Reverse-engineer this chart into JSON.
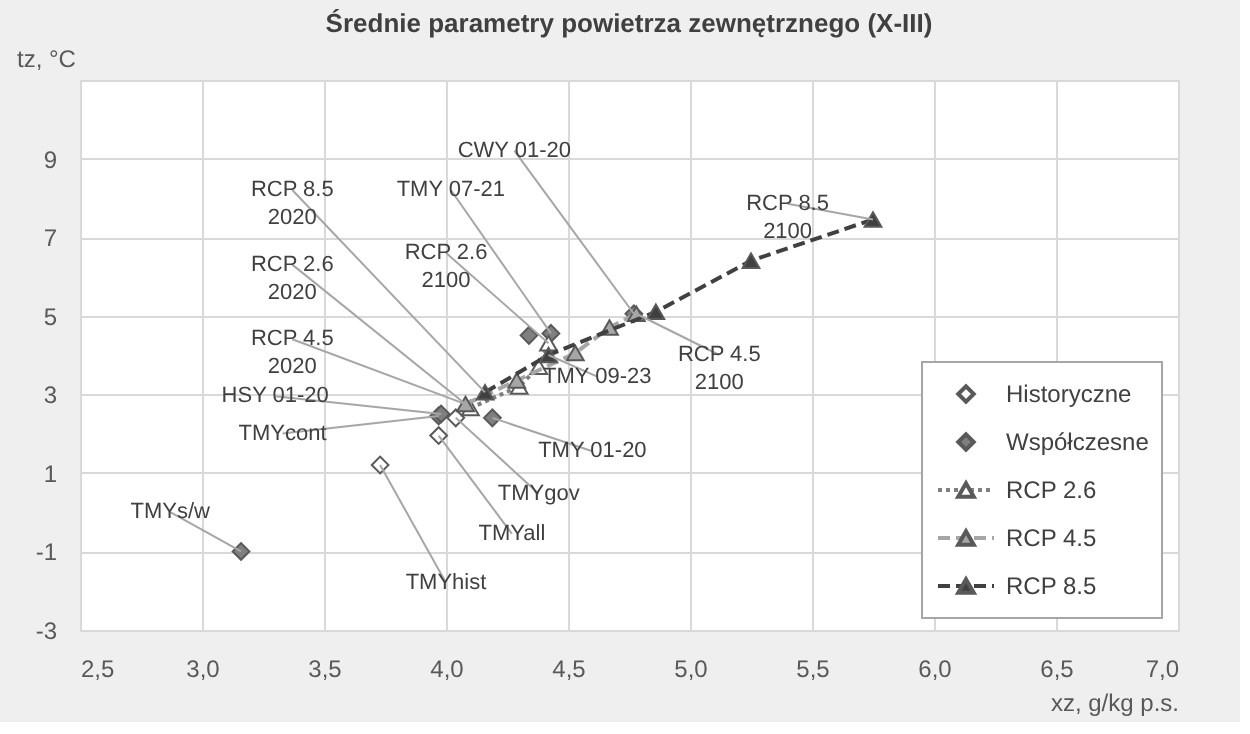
{
  "chart_data": {
    "type": "scatter",
    "title": "Średnie parametry powietrza zewnętrznego (X-III)",
    "xlabel": "xz, g/kg p.s.",
    "ylabel": "tz, °C",
    "xlim": [
      2.5,
      7.0
    ],
    "ylim": [
      -3,
      11
    ],
    "xticks": [
      {
        "value": 2.5,
        "label": "2,5"
      },
      {
        "value": 3.0,
        "label": "3,0"
      },
      {
        "value": 3.5,
        "label": "3,5"
      },
      {
        "value": 4.0,
        "label": "4,0"
      },
      {
        "value": 4.5,
        "label": "4,5"
      },
      {
        "value": 5.0,
        "label": "5,0"
      },
      {
        "value": 5.5,
        "label": "5,5"
      },
      {
        "value": 6.0,
        "label": "6,0"
      },
      {
        "value": 6.5,
        "label": "6,5"
      },
      {
        "value": 7.0,
        "label": "7,0"
      }
    ],
    "yticks": [
      -3,
      -1,
      1,
      3,
      5,
      7,
      9,
      {
        "value": 11,
        "label": null
      }
    ],
    "grid": true,
    "legend": "bottom right",
    "series": [
      {
        "name": "Historyczne",
        "marker": "diamond",
        "color": "#ffffff",
        "x": [
          3.73,
          3.97,
          4.04
        ],
        "values": [
          1.2,
          1.95,
          2.4
        ]
      },
      {
        "name": "Współczesne",
        "marker": "diamond",
        "color": "#7f7f7f",
        "x": [
          3.16,
          3.97,
          3.98,
          4.19,
          4.34,
          4.43,
          4.77
        ],
        "values": [
          -1.0,
          2.45,
          2.5,
          2.4,
          4.5,
          4.55,
          5.05
        ]
      },
      {
        "name": "RCP 2.6",
        "type": "line",
        "marker": "triangle",
        "line_style": "dotted",
        "color": "#ffffff",
        "x": [
          4.1,
          4.3,
          4.38,
          4.42
        ],
        "values": [
          2.65,
          3.2,
          3.7,
          4.3
        ]
      },
      {
        "name": "RCP 4.5",
        "type": "line",
        "marker": "triangle",
        "line_style": "dashed",
        "color": "#a6a6a6",
        "x": [
          4.08,
          4.29,
          4.53,
          4.67,
          4.78
        ],
        "values": [
          2.75,
          3.35,
          4.05,
          4.7,
          5.05
        ]
      },
      {
        "name": "RCP 8.5",
        "type": "line",
        "marker": "triangle",
        "line_style": "dashed",
        "color": "#404040",
        "x": [
          4.16,
          4.42,
          4.86,
          5.25,
          5.75
        ],
        "values": [
          3.05,
          4.0,
          5.1,
          6.4,
          7.45
        ]
      }
    ],
    "annotations": [
      {
        "text": "CWY 01-20",
        "x": 4.77,
        "y": 5.05
      },
      {
        "text": "TMY 07-21",
        "x": 4.43,
        "y": 4.55
      },
      {
        "text": "RCP 8.5\n2020",
        "x": 4.16,
        "y": 3.05
      },
      {
        "text": "RCP 2.6\n2100",
        "x": 4.42,
        "y": 4.3
      },
      {
        "text": "RCP 2.6\n2020",
        "x": 4.1,
        "y": 2.65
      },
      {
        "text": "RCP 4.5\n2020",
        "x": 4.08,
        "y": 2.75
      },
      {
        "text": "HSY 01-20",
        "x": 3.98,
        "y": 2.5
      },
      {
        "text": "TMYcont",
        "x": 3.97,
        "y": 2.45
      },
      {
        "text": "TMY 09-23",
        "x": 4.42,
        "y": 4.0
      },
      {
        "text": "TMY 01-20",
        "x": 4.19,
        "y": 2.4
      },
      {
        "text": "TMYgov",
        "x": 4.04,
        "y": 2.4
      },
      {
        "text": "TMYall",
        "x": 3.97,
        "y": 1.95
      },
      {
        "text": "TMYhist",
        "x": 3.73,
        "y": 1.2
      },
      {
        "text": "TMYs/w",
        "x": 3.16,
        "y": -1.0
      },
      {
        "text": "RCP 4.5\n2100",
        "x": 4.78,
        "y": 5.05
      },
      {
        "text": "RCP 8.5\n2100",
        "x": 5.75,
        "y": 7.45
      }
    ]
  }
}
